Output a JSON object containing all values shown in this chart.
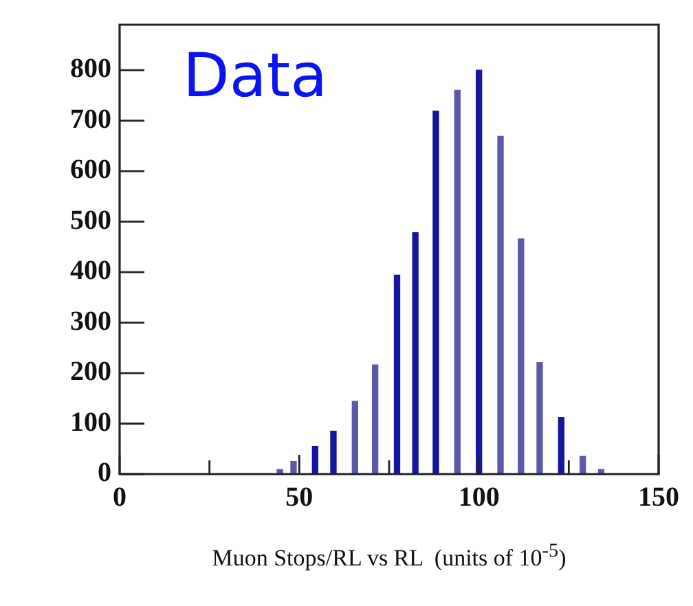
{
  "chart_data": {
    "type": "bar",
    "xlabel": "Muon Stops/RL vs RL  (units of 10$^{-5}$)",
    "annotations": [
      "Data"
    ],
    "xlim": [
      0,
      150
    ],
    "ylim": [
      0,
      890
    ],
    "xticks": [
      0,
      {
        "value": 25,
        "label": null
      },
      50,
      {
        "value": 75,
        "label": null
      },
      100,
      {
        "value": 125,
        "label": null
      },
      150
    ],
    "yticks": [
      0,
      100,
      200,
      300,
      400,
      500,
      600,
      700,
      800
    ],
    "x": [
      44.6,
      48.4,
      54.4,
      59.5,
      65.5,
      71.1,
      77.2,
      82.3,
      88.0,
      94.0,
      100.0,
      106.0,
      111.7,
      116.9,
      122.9,
      128.9,
      134.0
    ],
    "values": [
      9,
      25,
      55,
      85,
      144,
      216,
      394,
      478,
      719,
      760,
      800,
      669,
      466,
      221,
      112,
      35,
      9
    ],
    "colors": [
      "#5a5aa8",
      "#5a5aa8",
      "#1515a0",
      "#1515a0",
      "#5a5aa8",
      "#5a5aa8",
      "#1515a0",
      "#1515a0",
      "#1515a0",
      "#5a5aa8",
      "#1515a0",
      "#5a5aa8",
      "#5a5aa8",
      "#5a5aa8",
      "#1515a0",
      "#5a5aa8",
      "#5a5aa8"
    ],
    "grid": false,
    "legend": false
  }
}
